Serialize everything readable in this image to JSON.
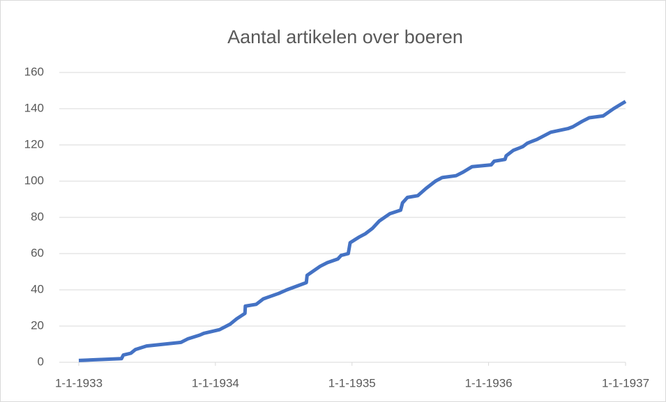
{
  "chart_data": {
    "type": "line",
    "title": "Aantal artikelen over boeren",
    "x": [
      "1933-01-01",
      "1933-04-25",
      "1933-04-30",
      "1933-05-20",
      "1933-06-01",
      "1933-07-01",
      "1933-10-01",
      "1933-10-20",
      "1933-11-20",
      "1933-12-01",
      "1934-01-12",
      "1934-02-09",
      "1934-02-27",
      "1934-03-21",
      "1934-03-22",
      "1934-04-20",
      "1934-05-09",
      "1934-06-19",
      "1934-07-11",
      "1934-09-01",
      "1934-09-03",
      "1934-10-08",
      "1934-10-27",
      "1934-11-24",
      "1934-12-03",
      "1934-12-22",
      "1934-12-27",
      "1935-01-19",
      "1935-02-06",
      "1935-02-25",
      "1935-03-15",
      "1935-04-12",
      "1935-05-11",
      "1935-05-16",
      "1935-05-29",
      "1935-06-26",
      "1935-07-18",
      "1935-08-12",
      "1935-08-30",
      "1935-10-06",
      "1935-10-25",
      "1935-11-18",
      "1936-01-08",
      "1936-01-16",
      "1936-02-14",
      "1936-02-17",
      "1936-03-07",
      "1936-04-01",
      "1936-04-14",
      "1936-05-09",
      "1936-06-15",
      "1936-07-31",
      "1936-08-13",
      "1936-09-07",
      "1936-09-26",
      "1936-11-02",
      "1936-11-30",
      "1937-01-01"
    ],
    "series": [
      {
        "name": "Aantal artikelen",
        "color": "#4472c4",
        "values": [
          1,
          2,
          4,
          5,
          7,
          9,
          11,
          13,
          15,
          16,
          18,
          21,
          24,
          27,
          31,
          32,
          35,
          38,
          40,
          44,
          48,
          53,
          55,
          57,
          59,
          60,
          66,
          69,
          71,
          74,
          78,
          82,
          84,
          88,
          91,
          92,
          96,
          100,
          102,
          103,
          105,
          108,
          109,
          111,
          112,
          114,
          117,
          119,
          121,
          123,
          127,
          129,
          130,
          133,
          135,
          136,
          140,
          144
        ]
      }
    ],
    "xlim": [
      "1933-01-01",
      "1937-01-01"
    ],
    "xticks": [
      {
        "value": "1933-01-01",
        "label": "1-1-1933"
      },
      {
        "value": "1934-01-01",
        "label": "1-1-1934"
      },
      {
        "value": "1935-01-01",
        "label": "1-1-1935"
      },
      {
        "value": "1936-01-01",
        "label": "1-1-1936"
      },
      {
        "value": "1937-01-01",
        "label": "1-1-1937"
      }
    ],
    "ylim": [
      0,
      160
    ],
    "yticks": [
      0,
      20,
      40,
      60,
      80,
      100,
      120,
      140,
      160
    ],
    "grid": true
  }
}
